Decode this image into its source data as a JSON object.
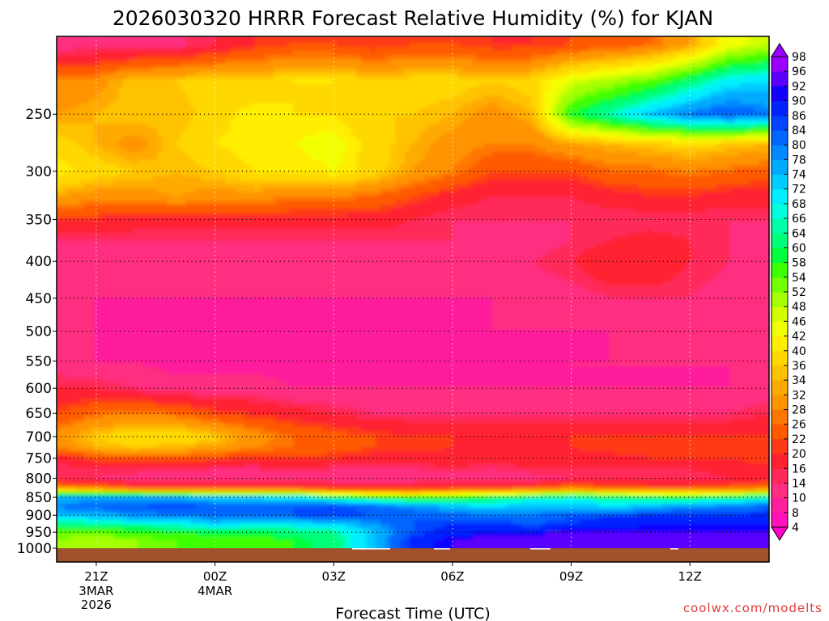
{
  "chart_data": {
    "type": "heatmap",
    "title": "2026030320 HRRR Forecast Relative Humidity (%) for KJAN",
    "xlabel": "Forecast Time (UTC)",
    "ylabel": "",
    "watermark": "coolwx.com/modelts",
    "x_ticks": [
      {
        "hour": 0,
        "label": "21Z",
        "sub": [
          "3MAR",
          "2026"
        ]
      },
      {
        "hour": 3,
        "label": "00Z",
        "sub": [
          "4MAR"
        ]
      },
      {
        "hour": 6,
        "label": "03Z",
        "sub": []
      },
      {
        "hour": 9,
        "label": "06Z",
        "sub": []
      },
      {
        "hour": 12,
        "label": "09Z",
        "sub": []
      },
      {
        "hour": 15,
        "label": "12Z",
        "sub": []
      }
    ],
    "x_range_hours": [
      -1,
      17
    ],
    "y_levels_hpa": [
      250,
      300,
      350,
      400,
      450,
      500,
      550,
      600,
      650,
      700,
      750,
      800,
      850,
      900,
      950,
      1000
    ],
    "y_range_hpa": [
      195,
      1000
    ],
    "colorbar_values": [
      4,
      8,
      10,
      14,
      16,
      20,
      22,
      26,
      28,
      32,
      34,
      36,
      40,
      42,
      46,
      48,
      52,
      54,
      58,
      60,
      64,
      66,
      68,
      72,
      74,
      78,
      80,
      84,
      86,
      90,
      92,
      96,
      98
    ],
    "colorbar_colors": [
      "#ff00c8",
      "#ff10b8",
      "#ff1e9c",
      "#ff2e80",
      "#ff2a5a",
      "#ff2030",
      "#ff3a18",
      "#ff5a00",
      "#ff7700",
      "#ff9400",
      "#ffaa00",
      "#ffc200",
      "#ffd800",
      "#ffee00",
      "#f2ff00",
      "#d2ff00",
      "#a6ff00",
      "#72ff00",
      "#3cff00",
      "#00ff3c",
      "#00ff78",
      "#00ffaa",
      "#00ffdc",
      "#00eeff",
      "#00ccff",
      "#00aaff",
      "#0088ff",
      "#0066ff",
      "#0044ff",
      "#0022ff",
      "#1100ff",
      "#5a00ff",
      "#9a00ff"
    ],
    "field_hours": [
      -1,
      0,
      1,
      2,
      3,
      4,
      5,
      6,
      7,
      8,
      9,
      10,
      11,
      12,
      13,
      14,
      15,
      16,
      17
    ],
    "field_levels_hpa": [
      200,
      225,
      250,
      275,
      300,
      325,
      350,
      375,
      400,
      450,
      500,
      550,
      600,
      650,
      700,
      725,
      750,
      775,
      800,
      825,
      850,
      875,
      900,
      925,
      950,
      975,
      1000
    ],
    "rh_rows": [
      [
        12,
        12,
        12,
        13,
        16,
        20,
        22,
        22,
        20,
        22,
        22,
        20,
        20,
        22,
        24,
        26,
        32,
        44,
        48
      ],
      [
        28,
        30,
        36,
        36,
        38,
        36,
        40,
        40,
        36,
        38,
        38,
        36,
        38,
        46,
        50,
        54,
        62,
        70,
        72
      ],
      [
        32,
        34,
        36,
        34,
        38,
        42,
        40,
        40,
        36,
        36,
        34,
        30,
        34,
        58,
        66,
        74,
        80,
        84,
        80
      ],
      [
        38,
        34,
        30,
        36,
        40,
        42,
        42,
        44,
        38,
        34,
        30,
        28,
        28,
        32,
        34,
        36,
        38,
        36,
        34
      ],
      [
        42,
        38,
        36,
        34,
        36,
        40,
        40,
        42,
        38,
        32,
        28,
        22,
        22,
        22,
        26,
        26,
        28,
        26,
        24
      ],
      [
        32,
        30,
        30,
        32,
        30,
        30,
        28,
        28,
        26,
        22,
        18,
        16,
        16,
        16,
        18,
        20,
        20,
        18,
        18
      ],
      [
        20,
        20,
        18,
        18,
        18,
        18,
        18,
        18,
        18,
        16,
        14,
        14,
        14,
        14,
        14,
        14,
        14,
        14,
        14
      ],
      [
        14,
        14,
        14,
        14,
        14,
        14,
        14,
        14,
        14,
        14,
        14,
        14,
        12,
        14,
        16,
        18,
        16,
        14,
        14
      ],
      [
        12,
        12,
        12,
        12,
        12,
        12,
        12,
        12,
        12,
        12,
        12,
        14,
        14,
        16,
        20,
        20,
        16,
        14,
        14
      ],
      [
        10,
        10,
        10,
        10,
        10,
        10,
        10,
        10,
        10,
        10,
        10,
        10,
        12,
        12,
        14,
        14,
        14,
        12,
        12
      ],
      [
        12,
        10,
        10,
        10,
        10,
        10,
        10,
        10,
        10,
        10,
        10,
        10,
        10,
        10,
        10,
        12,
        12,
        12,
        12
      ],
      [
        12,
        10,
        10,
        8,
        8,
        8,
        8,
        8,
        8,
        8,
        8,
        8,
        8,
        10,
        10,
        10,
        10,
        10,
        12
      ],
      [
        16,
        16,
        14,
        12,
        12,
        12,
        10,
        10,
        10,
        10,
        10,
        10,
        10,
        10,
        10,
        10,
        10,
        10,
        12
      ],
      [
        22,
        26,
        28,
        26,
        22,
        20,
        18,
        16,
        14,
        14,
        14,
        14,
        14,
        14,
        14,
        14,
        14,
        14,
        16
      ],
      [
        30,
        36,
        40,
        40,
        36,
        30,
        26,
        24,
        22,
        20,
        20,
        20,
        20,
        20,
        20,
        20,
        20,
        20,
        20
      ],
      [
        28,
        34,
        36,
        34,
        32,
        28,
        26,
        24,
        22,
        22,
        20,
        20,
        20,
        20,
        22,
        22,
        22,
        22,
        22
      ],
      [
        18,
        22,
        24,
        24,
        22,
        20,
        20,
        20,
        18,
        18,
        18,
        18,
        18,
        18,
        18,
        20,
        20,
        20,
        22
      ],
      [
        14,
        16,
        16,
        16,
        14,
        14,
        16,
        14,
        14,
        14,
        16,
        14,
        16,
        16,
        16,
        16,
        16,
        18,
        18
      ],
      [
        16,
        14,
        12,
        12,
        12,
        12,
        12,
        12,
        12,
        12,
        12,
        12,
        12,
        14,
        14,
        14,
        14,
        16,
        18
      ],
      [
        30,
        26,
        22,
        20,
        20,
        20,
        20,
        18,
        18,
        18,
        20,
        20,
        22,
        26,
        24,
        22,
        22,
        24,
        26
      ],
      [
        74,
        76,
        76,
        74,
        72,
        72,
        70,
        62,
        56,
        54,
        56,
        60,
        64,
        66,
        62,
        60,
        58,
        62,
        66
      ],
      [
        80,
        82,
        84,
        86,
        84,
        82,
        84,
        86,
        82,
        78,
        74,
        72,
        74,
        74,
        72,
        74,
        78,
        80,
        82
      ],
      [
        74,
        76,
        78,
        80,
        82,
        82,
        84,
        86,
        84,
        84,
        82,
        80,
        80,
        84,
        86,
        86,
        86,
        86,
        88
      ],
      [
        62,
        64,
        66,
        68,
        72,
        70,
        70,
        72,
        78,
        84,
        86,
        86,
        84,
        86,
        88,
        90,
        90,
        90,
        90
      ],
      [
        54,
        54,
        56,
        58,
        60,
        60,
        62,
        64,
        74,
        84,
        88,
        90,
        90,
        92,
        92,
        92,
        92,
        92,
        92
      ],
      [
        52,
        50,
        52,
        54,
        56,
        56,
        58,
        62,
        74,
        88,
        92,
        94,
        96,
        96,
        96,
        94,
        94,
        94,
        94
      ],
      [
        52,
        50,
        52,
        54,
        56,
        56,
        58,
        62,
        74,
        88,
        92,
        94,
        96,
        96,
        96,
        94,
        94,
        94,
        94
      ]
    ]
  }
}
